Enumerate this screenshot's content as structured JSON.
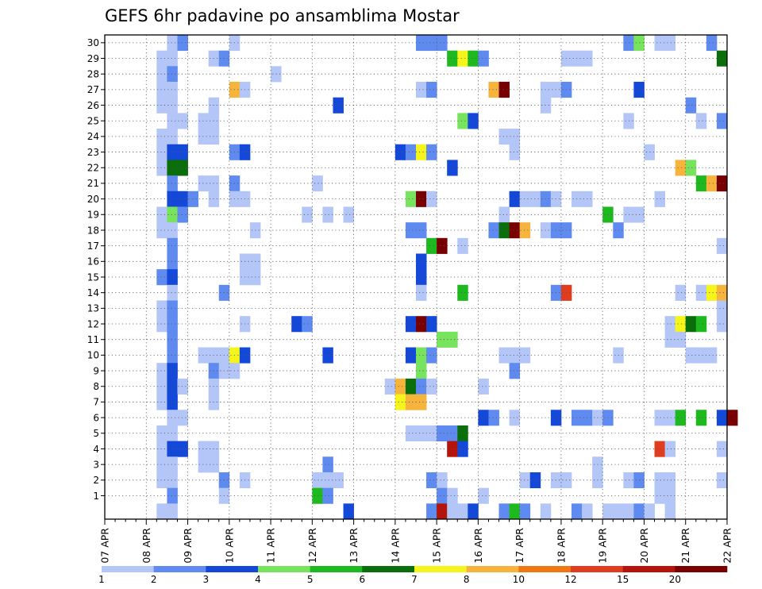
{
  "chart_data": {
    "type": "heatmap",
    "title": "GEFS 6hr padavine po ansamblima Mostar",
    "y_members": [
      1,
      2,
      3,
      4,
      5,
      6,
      7,
      8,
      9,
      10,
      11,
      12,
      13,
      14,
      15,
      16,
      17,
      18,
      19,
      20,
      21,
      22,
      23,
      24,
      25,
      26,
      27,
      28,
      29,
      30
    ],
    "x_ticks": [
      "07 APR",
      "08 APR",
      "09 APR",
      "10 APR",
      "11 APR",
      "12 APR",
      "13 APR",
      "14 APR",
      "15 APR",
      "16 APR",
      "17 APR",
      "18 APR",
      "19 APR",
      "20 APR",
      "21 APR",
      "22 APR"
    ],
    "x_steps": 60,
    "steps_per_day": 4,
    "grid": true,
    "colorbar": {
      "labels": [
        "1",
        "2",
        "3",
        "4",
        "5",
        "6",
        "7",
        "8",
        "10",
        "12",
        "15",
        "20"
      ],
      "colors": [
        "#b3c6f7",
        "#5f8af0",
        "#1448d8",
        "#78e35c",
        "#1eb91e",
        "#0a6e0a",
        "#f5f51c",
        "#f7b43c",
        "#f07814",
        "#e03c1e",
        "#b4140a",
        "#780000"
      ]
    },
    "cells": [
      [
        6,
        30,
        1
      ],
      [
        7,
        30,
        2
      ],
      [
        12,
        30,
        1
      ],
      [
        30,
        30,
        2
      ],
      [
        31,
        30,
        2
      ],
      [
        32,
        30,
        2
      ],
      [
        50,
        30,
        2
      ],
      [
        51,
        30,
        4
      ],
      [
        53,
        30,
        1
      ],
      [
        54,
        30,
        1
      ],
      [
        58,
        30,
        2
      ],
      [
        5,
        29,
        1
      ],
      [
        6,
        29,
        1
      ],
      [
        10,
        29,
        1
      ],
      [
        11,
        29,
        2
      ],
      [
        33,
        29,
        5
      ],
      [
        34,
        29,
        7
      ],
      [
        35,
        29,
        5
      ],
      [
        36,
        29,
        2
      ],
      [
        44,
        29,
        1
      ],
      [
        45,
        29,
        1
      ],
      [
        46,
        29,
        1
      ],
      [
        59,
        29,
        6
      ],
      [
        5,
        28,
        1
      ],
      [
        6,
        28,
        2
      ],
      [
        16,
        28,
        1
      ],
      [
        5,
        27,
        1
      ],
      [
        6,
        27,
        1
      ],
      [
        12,
        27,
        8
      ],
      [
        13,
        27,
        1
      ],
      [
        30,
        27,
        1
      ],
      [
        31,
        27,
        2
      ],
      [
        37,
        27,
        8
      ],
      [
        38,
        27,
        12
      ],
      [
        42,
        27,
        1
      ],
      [
        43,
        27,
        1
      ],
      [
        44,
        27,
        2
      ],
      [
        51,
        27,
        3
      ],
      [
        5,
        26,
        1
      ],
      [
        6,
        26,
        1
      ],
      [
        10,
        26,
        1
      ],
      [
        22,
        26,
        3
      ],
      [
        42,
        26,
        1
      ],
      [
        56,
        26,
        2
      ],
      [
        6,
        25,
        1
      ],
      [
        7,
        25,
        1
      ],
      [
        9,
        25,
        1
      ],
      [
        10,
        25,
        1
      ],
      [
        34,
        25,
        4
      ],
      [
        35,
        25,
        3
      ],
      [
        50,
        25,
        1
      ],
      [
        57,
        25,
        1
      ],
      [
        59,
        25,
        2
      ],
      [
        5,
        24,
        1
      ],
      [
        6,
        24,
        1
      ],
      [
        9,
        24,
        1
      ],
      [
        10,
        24,
        1
      ],
      [
        38,
        24,
        1
      ],
      [
        39,
        24,
        1
      ],
      [
        5,
        23,
        1
      ],
      [
        6,
        23,
        3
      ],
      [
        7,
        23,
        3
      ],
      [
        12,
        23,
        2
      ],
      [
        13,
        23,
        3
      ],
      [
        28,
        23,
        3
      ],
      [
        29,
        23,
        2
      ],
      [
        30,
        23,
        7
      ],
      [
        31,
        23,
        2
      ],
      [
        39,
        23,
        1
      ],
      [
        52,
        23,
        1
      ],
      [
        5,
        22,
        1
      ],
      [
        6,
        22,
        6
      ],
      [
        7,
        22,
        6
      ],
      [
        33,
        22,
        3
      ],
      [
        55,
        22,
        8
      ],
      [
        56,
        22,
        4
      ],
      [
        6,
        21,
        2
      ],
      [
        9,
        21,
        1
      ],
      [
        10,
        21,
        1
      ],
      [
        12,
        21,
        2
      ],
      [
        20,
        21,
        1
      ],
      [
        57,
        21,
        5
      ],
      [
        58,
        21,
        8
      ],
      [
        59,
        21,
        12
      ],
      [
        6,
        20,
        3
      ],
      [
        7,
        20,
        3
      ],
      [
        8,
        20,
        2
      ],
      [
        10,
        20,
        1
      ],
      [
        12,
        20,
        1
      ],
      [
        13,
        20,
        1
      ],
      [
        29,
        20,
        4
      ],
      [
        30,
        20,
        12
      ],
      [
        31,
        20,
        1
      ],
      [
        39,
        20,
        3
      ],
      [
        40,
        20,
        1
      ],
      [
        41,
        20,
        1
      ],
      [
        42,
        20,
        2
      ],
      [
        43,
        20,
        1
      ],
      [
        45,
        20,
        1
      ],
      [
        46,
        20,
        1
      ],
      [
        53,
        20,
        1
      ],
      [
        5,
        19,
        1
      ],
      [
        6,
        19,
        4
      ],
      [
        7,
        19,
        2
      ],
      [
        19,
        19,
        1
      ],
      [
        21,
        19,
        1
      ],
      [
        23,
        19,
        1
      ],
      [
        38,
        19,
        1
      ],
      [
        48,
        19,
        5
      ],
      [
        50,
        19,
        1
      ],
      [
        51,
        19,
        1
      ],
      [
        5,
        18,
        1
      ],
      [
        6,
        18,
        1
      ],
      [
        14,
        18,
        1
      ],
      [
        29,
        18,
        2
      ],
      [
        30,
        18,
        2
      ],
      [
        37,
        18,
        2
      ],
      [
        38,
        18,
        6
      ],
      [
        39,
        18,
        12
      ],
      [
        40,
        18,
        8
      ],
      [
        42,
        18,
        1
      ],
      [
        43,
        18,
        2
      ],
      [
        44,
        18,
        2
      ],
      [
        49,
        18,
        2
      ],
      [
        6,
        17,
        2
      ],
      [
        31,
        17,
        5
      ],
      [
        32,
        17,
        12
      ],
      [
        34,
        17,
        1
      ],
      [
        59,
        17,
        1
      ],
      [
        6,
        16,
        2
      ],
      [
        13,
        16,
        1
      ],
      [
        14,
        16,
        1
      ],
      [
        30,
        16,
        3
      ],
      [
        5,
        15,
        2
      ],
      [
        6,
        15,
        3
      ],
      [
        13,
        15,
        1
      ],
      [
        14,
        15,
        1
      ],
      [
        30,
        15,
        3
      ],
      [
        6,
        14,
        1
      ],
      [
        11,
        14,
        2
      ],
      [
        30,
        14,
        1
      ],
      [
        34,
        14,
        5
      ],
      [
        43,
        14,
        2
      ],
      [
        44,
        14,
        10
      ],
      [
        55,
        14,
        1
      ],
      [
        57,
        14,
        1
      ],
      [
        58,
        14,
        7
      ],
      [
        59,
        14,
        8
      ],
      [
        5,
        13,
        1
      ],
      [
        6,
        13,
        2
      ],
      [
        59,
        13,
        1
      ],
      [
        5,
        12,
        1
      ],
      [
        6,
        12,
        2
      ],
      [
        13,
        12,
        1
      ],
      [
        18,
        12,
        3
      ],
      [
        19,
        12,
        2
      ],
      [
        29,
        12,
        3
      ],
      [
        30,
        12,
        12
      ],
      [
        31,
        12,
        3
      ],
      [
        54,
        12,
        1
      ],
      [
        55,
        12,
        7
      ],
      [
        56,
        12,
        6
      ],
      [
        57,
        12,
        5
      ],
      [
        59,
        12,
        1
      ],
      [
        6,
        11,
        2
      ],
      [
        32,
        11,
        4
      ],
      [
        33,
        11,
        4
      ],
      [
        54,
        11,
        1
      ],
      [
        55,
        11,
        1
      ],
      [
        6,
        10,
        2
      ],
      [
        9,
        10,
        1
      ],
      [
        10,
        10,
        1
      ],
      [
        11,
        10,
        1
      ],
      [
        12,
        10,
        7
      ],
      [
        13,
        10,
        3
      ],
      [
        21,
        10,
        3
      ],
      [
        29,
        10,
        3
      ],
      [
        30,
        10,
        4
      ],
      [
        31,
        10,
        2
      ],
      [
        38,
        10,
        1
      ],
      [
        39,
        10,
        1
      ],
      [
        40,
        10,
        1
      ],
      [
        49,
        10,
        1
      ],
      [
        56,
        10,
        1
      ],
      [
        57,
        10,
        1
      ],
      [
        58,
        10,
        1
      ],
      [
        5,
        9,
        1
      ],
      [
        6,
        9,
        3
      ],
      [
        10,
        9,
        2
      ],
      [
        11,
        9,
        1
      ],
      [
        12,
        9,
        1
      ],
      [
        30,
        9,
        4
      ],
      [
        39,
        9,
        2
      ],
      [
        5,
        8,
        1
      ],
      [
        6,
        8,
        3
      ],
      [
        7,
        8,
        1
      ],
      [
        10,
        8,
        1
      ],
      [
        27,
        8,
        1
      ],
      [
        28,
        8,
        8
      ],
      [
        29,
        8,
        6
      ],
      [
        30,
        8,
        2
      ],
      [
        31,
        8,
        1
      ],
      [
        36,
        8,
        1
      ],
      [
        5,
        7,
        1
      ],
      [
        6,
        7,
        3
      ],
      [
        10,
        7,
        1
      ],
      [
        28,
        7,
        7
      ],
      [
        29,
        7,
        8
      ],
      [
        30,
        7,
        8
      ],
      [
        6,
        6,
        1
      ],
      [
        7,
        6,
        1
      ],
      [
        36,
        6,
        3
      ],
      [
        37,
        6,
        2
      ],
      [
        39,
        6,
        1
      ],
      [
        43,
        6,
        3
      ],
      [
        45,
        6,
        2
      ],
      [
        46,
        6,
        2
      ],
      [
        47,
        6,
        1
      ],
      [
        48,
        6,
        2
      ],
      [
        53,
        6,
        1
      ],
      [
        54,
        6,
        1
      ],
      [
        55,
        6,
        5
      ],
      [
        57,
        6,
        5
      ],
      [
        59,
        6,
        3
      ],
      [
        60,
        6,
        12
      ],
      [
        5,
        5,
        1
      ],
      [
        6,
        5,
        1
      ],
      [
        29,
        5,
        1
      ],
      [
        30,
        5,
        1
      ],
      [
        31,
        5,
        1
      ],
      [
        32,
        5,
        2
      ],
      [
        33,
        5,
        2
      ],
      [
        34,
        5,
        6
      ],
      [
        5,
        4,
        1
      ],
      [
        6,
        4,
        3
      ],
      [
        7,
        4,
        3
      ],
      [
        9,
        4,
        1
      ],
      [
        10,
        4,
        1
      ],
      [
        33,
        4,
        11
      ],
      [
        34,
        4,
        3
      ],
      [
        53,
        4,
        10
      ],
      [
        54,
        4,
        1
      ],
      [
        59,
        4,
        1
      ],
      [
        5,
        3,
        1
      ],
      [
        6,
        3,
        1
      ],
      [
        9,
        3,
        1
      ],
      [
        10,
        3,
        1
      ],
      [
        21,
        3,
        2
      ],
      [
        47,
        3,
        1
      ],
      [
        5,
        2,
        1
      ],
      [
        6,
        2,
        1
      ],
      [
        11,
        2,
        2
      ],
      [
        13,
        2,
        1
      ],
      [
        20,
        2,
        1
      ],
      [
        21,
        2,
        1
      ],
      [
        22,
        2,
        1
      ],
      [
        31,
        2,
        2
      ],
      [
        32,
        2,
        1
      ],
      [
        40,
        2,
        1
      ],
      [
        41,
        2,
        3
      ],
      [
        43,
        2,
        1
      ],
      [
        44,
        2,
        1
      ],
      [
        47,
        2,
        1
      ],
      [
        50,
        2,
        1
      ],
      [
        51,
        2,
        2
      ],
      [
        53,
        2,
        1
      ],
      [
        54,
        2,
        1
      ],
      [
        59,
        2,
        1
      ],
      [
        6,
        1,
        2
      ],
      [
        11,
        1,
        1
      ],
      [
        20,
        1,
        5
      ],
      [
        21,
        1,
        2
      ],
      [
        32,
        1,
        2
      ],
      [
        33,
        1,
        1
      ],
      [
        36,
        1,
        1
      ],
      [
        53,
        1,
        1
      ],
      [
        54,
        1,
        1
      ],
      [
        5,
        0,
        1
      ],
      [
        6,
        0,
        1
      ],
      [
        23,
        0,
        3
      ],
      [
        31,
        0,
        2
      ],
      [
        32,
        0,
        11
      ],
      [
        33,
        0,
        1
      ],
      [
        34,
        0,
        1
      ],
      [
        35,
        0,
        3
      ],
      [
        38,
        0,
        2
      ],
      [
        39,
        0,
        5
      ],
      [
        40,
        0,
        2
      ],
      [
        42,
        0,
        1
      ],
      [
        45,
        0,
        2
      ],
      [
        46,
        0,
        1
      ],
      [
        48,
        0,
        1
      ],
      [
        49,
        0,
        1
      ],
      [
        50,
        0,
        1
      ],
      [
        51,
        0,
        2
      ],
      [
        52,
        0,
        1
      ],
      [
        54,
        0,
        1
      ]
    ]
  }
}
